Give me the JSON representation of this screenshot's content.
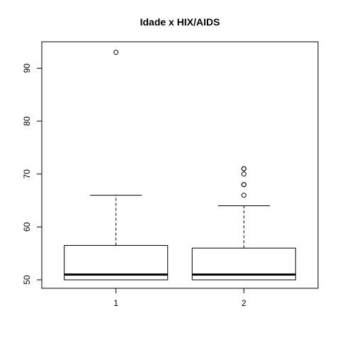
{
  "chart_data": {
    "type": "boxplot",
    "title": "Idade x HIX/AIDS",
    "xlabel": "",
    "ylabel": "",
    "categories": [
      "1",
      "2"
    ],
    "ylim": [
      48.4,
      95.0
    ],
    "yticks": [
      50,
      60,
      70,
      80,
      90
    ],
    "boxes": [
      {
        "category": "1",
        "whisker_low": 50,
        "q1": 50,
        "median": 51,
        "q3": 56.5,
        "whisker_high": 66,
        "outliers": [
          93
        ]
      },
      {
        "category": "2",
        "whisker_low": 50,
        "q1": 50,
        "median": 51,
        "q3": 56,
        "whisker_high": 64,
        "outliers": [
          66,
          68,
          68,
          70,
          71,
          71
        ]
      }
    ],
    "grid": false,
    "colors": {
      "box_fill": "#ffffff",
      "stroke": "#000000"
    }
  }
}
